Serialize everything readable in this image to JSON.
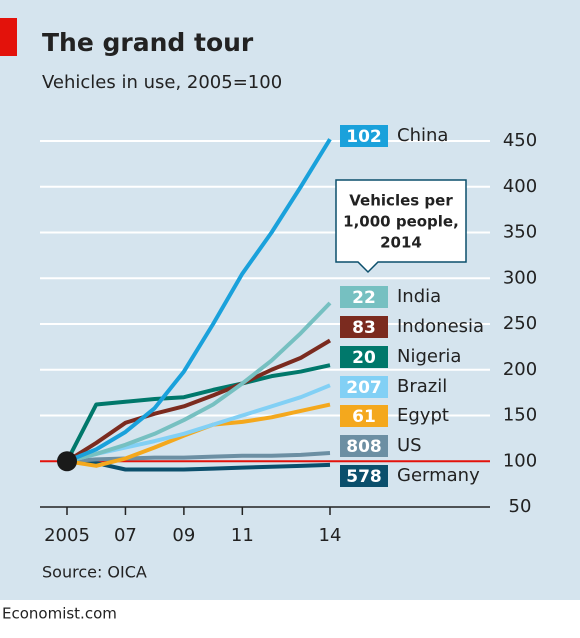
{
  "chart_data": {
    "type": "line",
    "title": "The grand tour",
    "subtitle": "Vehicles in use, 2005=100",
    "annotation": [
      "Vehicles per",
      "1,000 people,",
      "2014"
    ],
    "source": "Source: OICA",
    "credit": "Economist.com",
    "x": [
      2005,
      2006,
      2007,
      2008,
      2009,
      2010,
      2011,
      2012,
      2013,
      2014
    ],
    "xlim": [
      2005,
      2014
    ],
    "xticks": [
      2005,
      {
        "value": 2007,
        "label": "07"
      },
      {
        "value": 2009,
        "label": "09"
      },
      {
        "value": 2011,
        "label": "11"
      },
      {
        "value": 2014,
        "label": "14"
      }
    ],
    "ylim": [
      50,
      450
    ],
    "yticks": [
      50,
      100,
      150,
      200,
      250,
      300,
      350,
      400,
      450
    ],
    "grid": true,
    "reference_line": 100,
    "series": [
      {
        "name": "China",
        "color": "#1aa1db",
        "per_1000": 102,
        "values": [
          100,
          113,
          132,
          158,
          198,
          250,
          305,
          350,
          400,
          452
        ]
      },
      {
        "name": "India",
        "color": "#76c0c1",
        "per_1000": 22,
        "values": [
          100,
          108,
          118,
          130,
          145,
          162,
          185,
          210,
          240,
          273
        ]
      },
      {
        "name": "Indonesia",
        "color": "#7b2b1f",
        "per_1000": 83,
        "values": [
          100,
          120,
          142,
          152,
          160,
          172,
          185,
          200,
          213,
          232
        ]
      },
      {
        "name": "Nigeria",
        "color": "#00786b",
        "per_1000": 20,
        "values": [
          100,
          162,
          165,
          168,
          170,
          178,
          185,
          193,
          198,
          205
        ]
      },
      {
        "name": "Brazil",
        "color": "#82d0f5",
        "per_1000": 207,
        "values": [
          100,
          108,
          115,
          122,
          130,
          140,
          150,
          160,
          170,
          183
        ]
      },
      {
        "name": "Egypt",
        "color": "#f4a81d",
        "per_1000": 61,
        "values": [
          100,
          95,
          103,
          115,
          128,
          140,
          143,
          148,
          155,
          162
        ]
      },
      {
        "name": "US",
        "color": "#6c8fa3",
        "per_1000": 808,
        "values": [
          100,
          102,
          103,
          104,
          104,
          105,
          106,
          106,
          107,
          109
        ]
      },
      {
        "name": "Germany",
        "color": "#0b4f6c",
        "per_1000": 578,
        "values": [
          100,
          98,
          91,
          91,
          91,
          92,
          93,
          94,
          95,
          96
        ]
      }
    ]
  }
}
